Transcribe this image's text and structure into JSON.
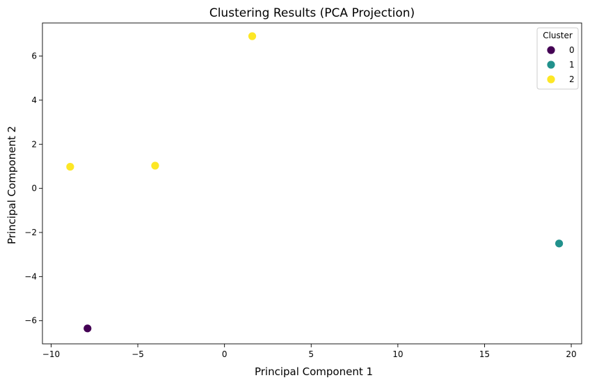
{
  "chart_data": {
    "type": "scatter",
    "title": "Clustering Results (PCA Projection)",
    "xlabel": "Principal Component 1",
    "ylabel": "Principal Component 2",
    "xlim": [
      -10.5,
      20.6
    ],
    "ylim": [
      -7.05,
      7.5
    ],
    "xticks": [
      -10,
      -5,
      0,
      5,
      10,
      15,
      20
    ],
    "yticks": [
      -6,
      -4,
      -2,
      0,
      2,
      4,
      6
    ],
    "grid": false,
    "legend": {
      "title": "Cluster",
      "placement": "top-right",
      "entries": [
        {
          "label": "0",
          "color": "#440154"
        },
        {
          "label": "1",
          "color": "#21918c"
        },
        {
          "label": "2",
          "color": "#fde725"
        }
      ]
    },
    "series": [
      {
        "cluster": "0",
        "color": "#440154",
        "points": [
          {
            "x": -7.9,
            "y": -6.35
          }
        ]
      },
      {
        "cluster": "1",
        "color": "#21918c",
        "points": [
          {
            "x": 19.3,
            "y": -2.5
          }
        ]
      },
      {
        "cluster": "2",
        "color": "#fde725",
        "points": [
          {
            "x": 1.6,
            "y": 6.9
          },
          {
            "x": -8.9,
            "y": 0.98
          },
          {
            "x": -4.0,
            "y": 1.03
          }
        ]
      }
    ]
  }
}
